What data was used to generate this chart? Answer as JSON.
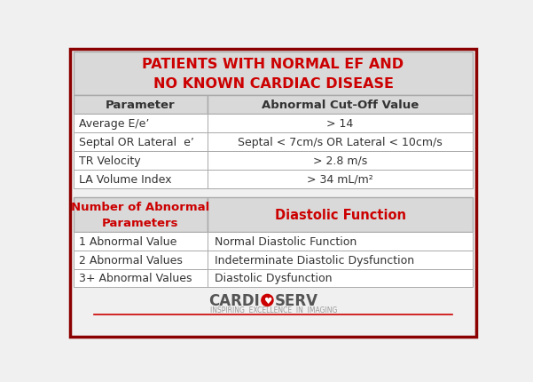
{
  "bg_color": "#f0f0f0",
  "border_color": "#8b0000",
  "title_text": "PATIENTS WITH NORMAL EF AND\nNO KNOWN CARDIAC DISEASE",
  "title_color": "#cc0000",
  "header_color": "#d9d9d9",
  "table1_headers": [
    "Parameter",
    "Abnormal Cut-Off Value"
  ],
  "table1_rows": [
    [
      "Average E/e’",
      "> 14"
    ],
    [
      "Septal OR Lateral  e’",
      "Septal < 7cm/s OR Lateral < 10cm/s"
    ],
    [
      "TR Velocity",
      "> 2.8 m/s"
    ],
    [
      "LA Volume Index",
      "> 34 mL/m²"
    ]
  ],
  "table2_headers": [
    "Number of Abnormal\nParameters",
    "Diastolic Function"
  ],
  "table2_header_color": "#cc0000",
  "table2_rows": [
    [
      "1 Abnormal Value",
      "Normal Diastolic Function"
    ],
    [
      "2 Abnormal Values",
      "Indeterminate Diastolic Dysfunction"
    ],
    [
      "3+ Abnormal Values",
      "Diastolic Dysfunction"
    ]
  ],
  "logo_text_left": "CARDI",
  "logo_text_right": "SERV",
  "logo_sub": "INSPIRING  EXCELLENCE  IN  IMAGING",
  "logo_color_main": "#555555",
  "logo_color_red": "#cc0000",
  "row_bg_white": "#ffffff",
  "cell_text_color": "#333333",
  "line_color": "#aaaaaa"
}
